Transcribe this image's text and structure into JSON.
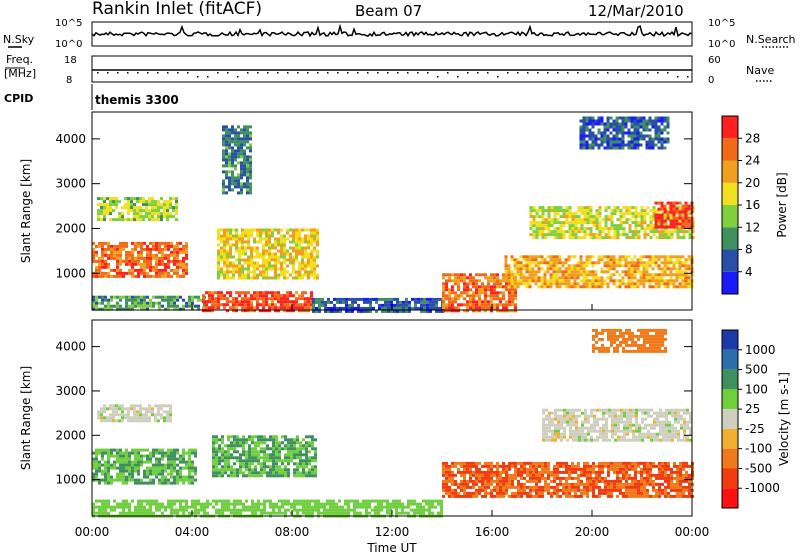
{
  "header": {
    "station": "Rankin Inlet (fitACF)",
    "beam": "Beam 07",
    "date": "12/Mar/2010"
  },
  "side_labels": {
    "nsky": "N.Sky",
    "nsearch": "N.Search",
    "freq_line1": "Freq.",
    "freq_line2": "[MHz]",
    "nave": "Nave",
    "cpid": "CPID",
    "cpid_value": "themis 3300"
  },
  "noise_panel": {
    "left_ticks": [
      "10^5",
      "10^0"
    ],
    "right_ticks": [
      "10^5",
      "10^0"
    ]
  },
  "freq_panel": {
    "left_ticks": [
      "18",
      "8"
    ],
    "right_ticks": [
      "60",
      "0"
    ]
  },
  "x_axis": {
    "label": "Time UT",
    "ticks": [
      "00:00",
      "04:00",
      "08:00",
      "12:00",
      "16:00",
      "20:00",
      "00:00"
    ]
  },
  "y_axis": {
    "label": "Slant Range [km]",
    "ticks": [
      "1000",
      "2000",
      "3000",
      "4000"
    ]
  },
  "power_colorbar": {
    "label": "Power [dB]",
    "ticks": [
      "4",
      "8",
      "12",
      "16",
      "20",
      "24",
      "28"
    ],
    "colors": [
      "#1a1aff",
      "#2a4fa8",
      "#3f8f5f",
      "#7fcf3f",
      "#f0e020",
      "#f0a020",
      "#f06a1a",
      "#ff2020"
    ]
  },
  "velocity_colorbar": {
    "label": "Velocity [m s-1]",
    "ticks": [
      "1000",
      "500",
      "100",
      "25",
      "-25",
      "-100",
      "-500",
      "-1000"
    ],
    "colors": [
      "#1c3aa8",
      "#2a6fa8",
      "#3f8f5f",
      "#6fcf3f",
      "#cfcfc0",
      "#f0b030",
      "#f07a1a",
      "#f03a10",
      "#ff1010"
    ]
  },
  "chart_data": [
    {
      "type": "heatmap",
      "title": "Power",
      "xlabel": "Time UT",
      "ylabel": "Slant Range [km]",
      "xlim": [
        "00:00",
        "24:00"
      ],
      "ylim": [
        180,
        4600
      ],
      "color_scale": {
        "quantity": "Power [dB]",
        "range": [
          0,
          30
        ]
      },
      "regions": [
        {
          "t0": 0.0,
          "t1": 3.8,
          "r0": 900,
          "r1": 1700,
          "level": 24
        },
        {
          "t0": 0.2,
          "t1": 3.4,
          "r0": 2200,
          "r1": 2700,
          "level": 14
        },
        {
          "t0": 0.0,
          "t1": 4.5,
          "r0": 180,
          "r1": 500,
          "level": 10
        },
        {
          "t0": 4.4,
          "t1": 8.8,
          "r0": 180,
          "r1": 600,
          "level": 26
        },
        {
          "t0": 5.0,
          "t1": 9.0,
          "r0": 900,
          "r1": 2000,
          "level": 18
        },
        {
          "t0": 5.2,
          "t1": 6.4,
          "r0": 2800,
          "r1": 4300,
          "level": 8
        },
        {
          "t0": 8.8,
          "t1": 14.0,
          "r0": 180,
          "r1": 450,
          "level": 6
        },
        {
          "t0": 14.0,
          "t1": 17.0,
          "r0": 180,
          "r1": 1000,
          "level": 24
        },
        {
          "t0": 16.5,
          "t1": 24.0,
          "r0": 700,
          "r1": 1400,
          "level": 20
        },
        {
          "t0": 17.5,
          "t1": 24.0,
          "r0": 1800,
          "r1": 2500,
          "level": 16
        },
        {
          "t0": 19.5,
          "t1": 23.0,
          "r0": 3800,
          "r1": 4500,
          "level": 6
        },
        {
          "t0": 22.5,
          "t1": 24.0,
          "r0": 2000,
          "r1": 2600,
          "level": 28
        }
      ]
    },
    {
      "type": "heatmap",
      "title": "Velocity",
      "xlabel": "Time UT",
      "ylabel": "Slant Range [km]",
      "xlim": [
        "00:00",
        "24:00"
      ],
      "ylim": [
        180,
        4600
      ],
      "color_scale": {
        "quantity": "Velocity [m s-1]",
        "range": [
          -1000,
          1000
        ]
      },
      "regions": [
        {
          "t0": 0.0,
          "t1": 4.2,
          "r0": 900,
          "r1": 1700,
          "level": 100
        },
        {
          "t0": 0.2,
          "t1": 3.2,
          "r0": 2300,
          "r1": 2700,
          "level": 0
        },
        {
          "t0": 4.8,
          "t1": 9.0,
          "r0": 1100,
          "r1": 2000,
          "level": 100
        },
        {
          "t0": 0.0,
          "t1": 14.0,
          "r0": 180,
          "r1": 550,
          "level": 60
        },
        {
          "t0": 14.0,
          "t1": 24.0,
          "r0": 600,
          "r1": 1400,
          "level": -500
        },
        {
          "t0": 18.0,
          "t1": 24.0,
          "r0": 1900,
          "r1": 2600,
          "level": 0
        },
        {
          "t0": 20.0,
          "t1": 23.0,
          "r0": 3900,
          "r1": 4400,
          "level": -200
        }
      ]
    }
  ]
}
